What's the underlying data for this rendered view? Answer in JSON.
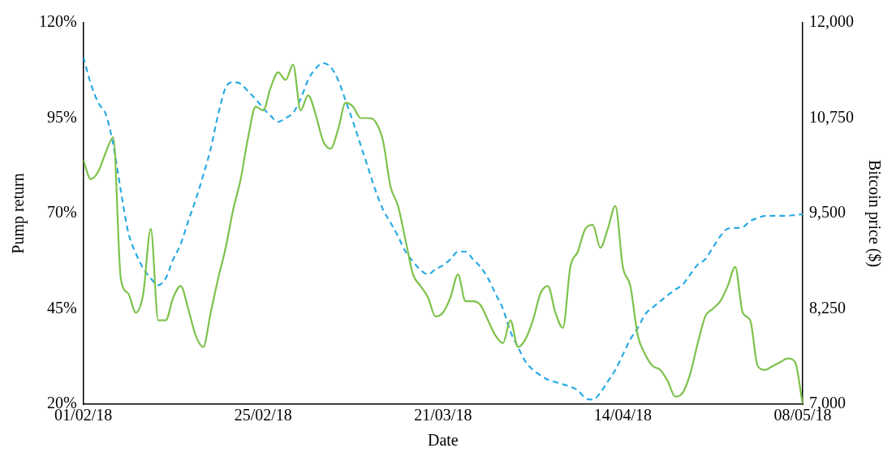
{
  "chart_data": {
    "type": "line",
    "xlabel": "Date",
    "ylabel": "Pump return",
    "y2label": "Bitcoin price ($)",
    "x": [
      "2018-02-01",
      "2018-02-02",
      "2018-02-03",
      "2018-02-04",
      "2018-02-05",
      "2018-02-06",
      "2018-02-07",
      "2018-02-08",
      "2018-02-09",
      "2018-02-10",
      "2018-02-11",
      "2018-02-12",
      "2018-02-13",
      "2018-02-14",
      "2018-02-15",
      "2018-02-16",
      "2018-02-17",
      "2018-02-18",
      "2018-02-19",
      "2018-02-20",
      "2018-02-21",
      "2018-02-22",
      "2018-02-23",
      "2018-02-24",
      "2018-02-25",
      "2018-02-26",
      "2018-02-27",
      "2018-02-28",
      "2018-03-01",
      "2018-03-02",
      "2018-03-03",
      "2018-03-04",
      "2018-03-05",
      "2018-03-06",
      "2018-03-07",
      "2018-03-08",
      "2018-03-09",
      "2018-03-10",
      "2018-03-11",
      "2018-03-12",
      "2018-03-13",
      "2018-03-14",
      "2018-03-15",
      "2018-03-16",
      "2018-03-17",
      "2018-03-18",
      "2018-03-19",
      "2018-03-20",
      "2018-03-21",
      "2018-03-22",
      "2018-03-23",
      "2018-03-24",
      "2018-03-25",
      "2018-03-26",
      "2018-03-27",
      "2018-03-28",
      "2018-03-29",
      "2018-03-30",
      "2018-03-31",
      "2018-04-01",
      "2018-04-02",
      "2018-04-03",
      "2018-04-04",
      "2018-04-05",
      "2018-04-06",
      "2018-04-07",
      "2018-04-08",
      "2018-04-09",
      "2018-04-10",
      "2018-04-11",
      "2018-04-12",
      "2018-04-13",
      "2018-04-14",
      "2018-04-15",
      "2018-04-16",
      "2018-04-17",
      "2018-04-18",
      "2018-04-19",
      "2018-04-20",
      "2018-04-21",
      "2018-04-22",
      "2018-04-23",
      "2018-04-24",
      "2018-04-25",
      "2018-04-26",
      "2018-04-27",
      "2018-04-28",
      "2018-04-29",
      "2018-04-30",
      "2018-05-01",
      "2018-05-02",
      "2018-05-03",
      "2018-05-04",
      "2018-05-05",
      "2018-05-06",
      "2018-05-07",
      "2018-05-08"
    ],
    "series": [
      {
        "color": "#7dc24b",
        "line_style": "solid",
        "values": [
          84,
          79,
          81,
          86,
          90,
          53,
          49,
          44,
          49,
          66,
          42,
          42,
          48,
          51,
          45,
          38,
          35,
          44,
          53,
          61,
          71,
          79,
          90,
          98,
          97,
          103,
          107,
          105,
          109,
          97,
          101,
          96,
          89,
          87,
          92,
          99,
          98,
          95,
          95,
          94,
          89,
          77,
          72,
          63,
          54,
          51,
          48,
          43,
          44,
          48,
          54,
          47,
          47,
          46,
          42,
          38,
          36,
          42,
          35,
          37,
          42,
          49,
          51,
          44,
          40,
          56,
          60,
          66,
          67,
          61,
          66,
          72,
          56,
          51,
          38,
          33,
          30,
          29,
          26,
          22,
          23,
          28,
          36,
          43,
          45,
          47,
          51,
          56,
          44,
          42,
          30,
          29,
          30,
          31,
          32,
          31,
          20
        ]
      },
      {
        "color": "#29abe2",
        "line_style": "dashed",
        "axis": "y2",
        "values": [
          11550,
          11200,
          10950,
          10800,
          10400,
          9800,
          9250,
          8980,
          8780,
          8650,
          8560,
          8650,
          8900,
          9100,
          9400,
          9680,
          10000,
          10350,
          10800,
          11150,
          11220,
          11200,
          11100,
          11000,
          10880,
          10780,
          10700,
          10750,
          10820,
          11000,
          11250,
          11400,
          11470,
          11420,
          11250,
          10980,
          10700,
          10400,
          10100,
          9800,
          9550,
          9380,
          9200,
          9000,
          8870,
          8760,
          8700,
          8770,
          8820,
          8900,
          9000,
          9000,
          8900,
          8800,
          8650,
          8450,
          8250,
          7950,
          7750,
          7560,
          7450,
          7380,
          7320,
          7290,
          7260,
          7230,
          7180,
          7080,
          7060,
          7150,
          7300,
          7450,
          7650,
          7850,
          8000,
          8180,
          8270,
          8350,
          8430,
          8500,
          8570,
          8700,
          8830,
          8900,
          9050,
          9200,
          9300,
          9310,
          9320,
          9400,
          9440,
          9470,
          9470,
          9470,
          9470,
          9480,
          9490
        ]
      }
    ],
    "xlim": [
      "2018-02-01",
      "2018-05-08"
    ],
    "xticks": [
      {
        "value": "2018-02-01",
        "label": "01/02/18"
      },
      {
        "value": "2018-02-25",
        "label": "25/02/18"
      },
      {
        "value": "2018-03-21",
        "label": "21/03/18"
      },
      {
        "value": "2018-04-14",
        "label": "14/04/18"
      },
      {
        "value": "2018-05-08",
        "label": "08/05/18"
      }
    ],
    "ylim": [
      20,
      120
    ],
    "yticks": [
      {
        "value": 20,
        "label": "20%"
      },
      {
        "value": 45,
        "label": "45%"
      },
      {
        "value": 70,
        "label": "70%"
      },
      {
        "value": 95,
        "label": "95%"
      },
      {
        "value": 120,
        "label": "120%"
      }
    ],
    "y2lim": [
      7000,
      12000
    ],
    "y2ticks": [
      {
        "value": 7000,
        "label": "7,000"
      },
      {
        "value": 8250,
        "label": "8,250"
      },
      {
        "value": 9500,
        "label": "9,500"
      },
      {
        "value": 10750,
        "label": "10,750"
      },
      {
        "value": 12000,
        "label": "12,000"
      }
    ],
    "grid": false,
    "legend": false,
    "marker": "none"
  }
}
